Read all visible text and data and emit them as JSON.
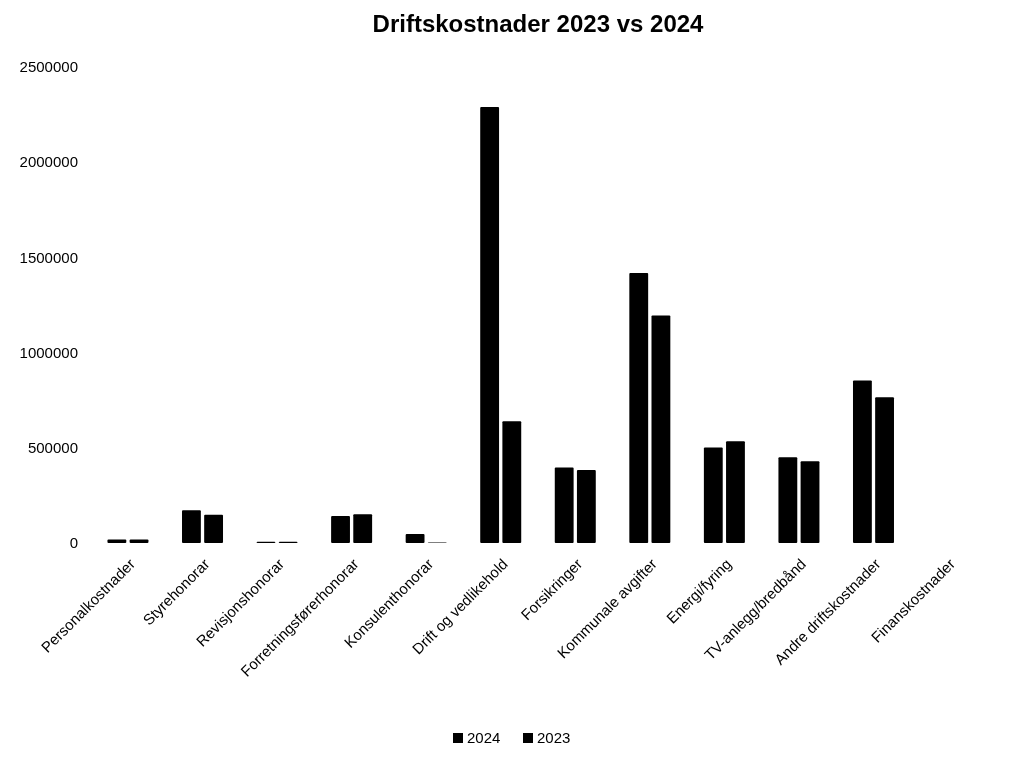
{
  "chart_data": {
    "type": "bar",
    "title": "Driftskostnader 2023 vs 2024",
    "categories": [
      "Personalkostnader",
      "Styrehonorar",
      "Revisjonshonorar",
      "Forretningsførerhonorar",
      "Konsulenthonorar",
      "Drift og vedlikehold",
      "Forsikringer",
      "Kommunale avgifter",
      "Energi/fyring",
      "TV-anlegg/bredbånd",
      "Andre driftskostnader",
      "Finanskostnader"
    ],
    "series": [
      {
        "name": "2024",
        "color": "#000000",
        "values": [
          19000,
          172000,
          7000,
          142000,
          47000,
          2290000,
          397000,
          1418000,
          502000,
          451000,
          854000,
          0
        ]
      },
      {
        "name": "2023",
        "color": "#000000",
        "values": [
          18000,
          148000,
          7000,
          151000,
          3000,
          640000,
          383000,
          1195000,
          535000,
          430000,
          766000,
          0
        ]
      }
    ],
    "ylim": [
      0,
      2500000
    ],
    "yticks": [
      0,
      500000,
      1000000,
      1500000,
      2000000,
      2500000
    ],
    "grid": false,
    "legend": "bottom"
  }
}
